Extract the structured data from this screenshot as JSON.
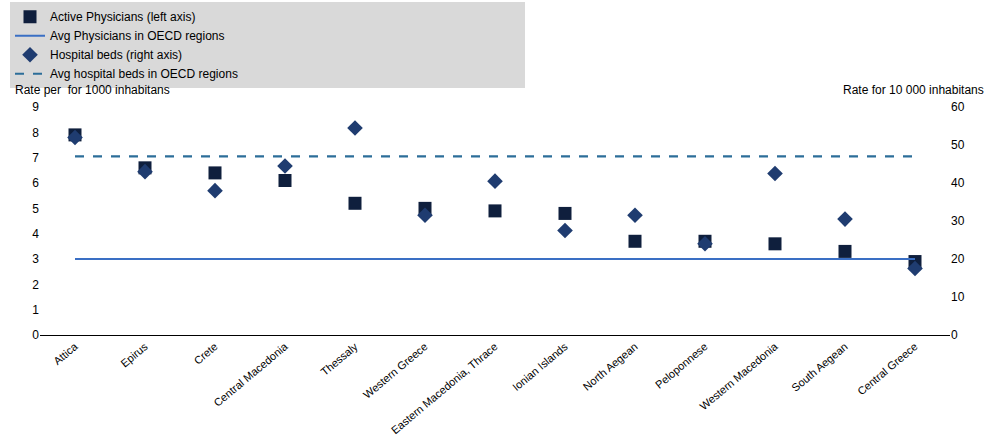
{
  "chart_data": {
    "type": "scatter",
    "y_label": "Rate per  for 1000 inhabitans",
    "y2_label": "Rate for 10 000 inhabitans",
    "categories": [
      "Attica",
      "Epirus",
      "Crete",
      "Central Macedonia",
      "Thessaly",
      "Western Greece",
      "Eastern Macedonia, Thrace",
      "Ionian Islands",
      "North Aegean",
      "Peloponnese",
      "Western Macedonia",
      "South Aegean",
      "Central Greece"
    ],
    "series": [
      {
        "name": "Active Physicians (left axis)",
        "type": "scatter",
        "marker": "square",
        "color": "#0f1f3d",
        "values": [
          7.9,
          6.6,
          6.4,
          6.1,
          5.2,
          5.0,
          4.9,
          4.8,
          3.7,
          3.7,
          3.6,
          3.3,
          2.9
        ]
      },
      {
        "name": "Avg Physicians in OECD regions",
        "type": "line",
        "line_style": "solid",
        "color": "#3a6fc4",
        "values": [
          3.0,
          3.0,
          3.0,
          3.0,
          3.0,
          3.0,
          3.0,
          3.0,
          3.0,
          3.0,
          3.0,
          3.0,
          3.0
        ]
      },
      {
        "name": "Hospital beds (right axis)",
        "type": "scatter",
        "marker": "diamond",
        "color": "#1f3c70",
        "axis": "y2",
        "values": [
          52,
          43,
          38,
          44.5,
          54.5,
          31.5,
          40.5,
          27.5,
          31.5,
          24,
          42.5,
          30.5,
          17.5
        ]
      },
      {
        "name": "Avg hospital beds in OECD regions",
        "type": "line",
        "line_style": "dash",
        "color": "#2c6e99",
        "axis": "y2",
        "values": [
          47,
          47,
          47,
          47,
          47,
          47,
          47,
          47,
          47,
          47,
          47,
          47,
          47
        ]
      }
    ],
    "ylim": [
      0,
      9
    ],
    "yticks": [
      0,
      1,
      2,
      3,
      4,
      5,
      6,
      7,
      8,
      9
    ],
    "y2lim": [
      0,
      60
    ],
    "y2ticks": [
      0,
      10,
      20,
      30,
      40,
      50,
      60
    ],
    "grid": false,
    "legend": "top"
  }
}
